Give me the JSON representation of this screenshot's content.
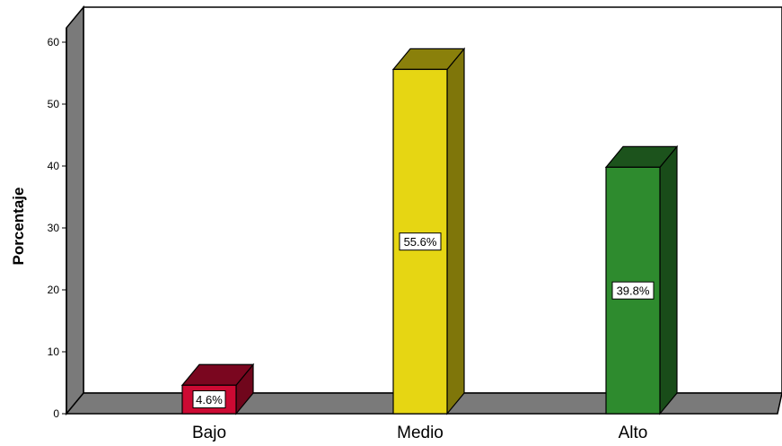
{
  "chart_data": {
    "type": "bar",
    "categories": [
      "Bajo",
      "Medio",
      "Alto"
    ],
    "values": [
      4.6,
      55.6,
      39.8
    ],
    "data_labels": [
      "4.6%",
      "55.6%",
      "39.8%"
    ],
    "ylabel": "Porcentaje",
    "ylim": [
      0,
      60
    ],
    "yticks": [
      "0",
      "10",
      "20",
      "30",
      "40",
      "50",
      "60"
    ],
    "grid": false,
    "style": "3d",
    "colors": {
      "Bajo": "#cc0a33",
      "Medio": "#e6d613",
      "Alto": "#2e8b2e",
      "background_wall": "#ffffff",
      "floor": "#7a7a7a",
      "side_wall": "#7a7a7a"
    }
  }
}
